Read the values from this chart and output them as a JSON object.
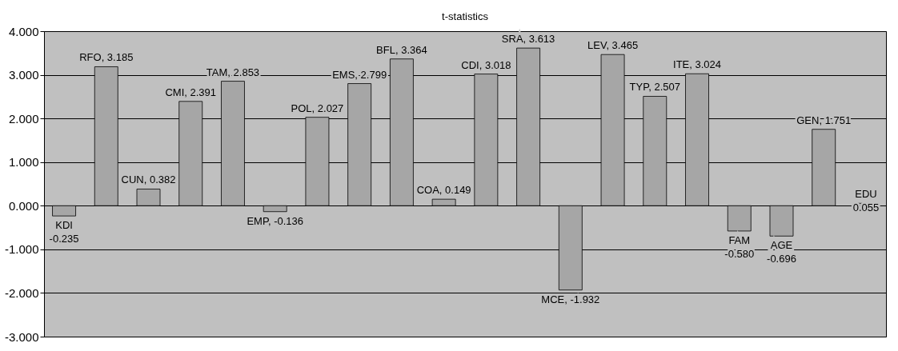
{
  "chart_data": {
    "type": "bar",
    "title": "t-statistics",
    "categories": [
      null,
      null,
      null,
      null,
      null,
      null,
      null,
      null,
      null,
      null,
      null,
      null,
      null,
      null,
      null,
      null,
      null,
      null,
      null,
      null
    ],
    "values": [
      -0.235,
      3.185,
      0.382,
      2.391,
      2.853,
      -0.136,
      2.027,
      2.799,
      3.364,
      0.149,
      3.018,
      3.613,
      -1.932,
      3.465,
      2.507,
      3.024,
      -0.58,
      -0.696,
      1.751,
      0.055
    ],
    "value_labels": [
      "KDI\n-0.235",
      "RFO, 3.185",
      "CUN, 0.382",
      "CMI, 2.391",
      "TAM, 2.853",
      "EMP, -0.136",
      "POL, 2.027",
      "EMS, 2.799",
      "BFL, 3.364",
      "COA, 0.149",
      "CDI, 3.018",
      "SRA, 3.613",
      "MCE, -1.932",
      "LEV, 3.465",
      "TYP, 2.507",
      "ITE, 3.024",
      "FAM\n-0.580",
      "AGE\n-0.696",
      "GEN, 1.751",
      "EDU\n0.055"
    ],
    "color": "#a6a6a6",
    "ylim": [
      -3,
      4
    ],
    "yticks": [
      {
        "value": -3,
        "label": "-3.000"
      },
      {
        "value": -2,
        "label": "-2.000"
      },
      {
        "value": -1,
        "label": "-1.000"
      },
      {
        "value": 0,
        "label": "0.000"
      },
      {
        "value": 1,
        "label": "1.000"
      },
      {
        "value": 2,
        "label": "2.000"
      },
      {
        "value": 3,
        "label": "3.000"
      },
      {
        "value": 4,
        "label": "4.000"
      }
    ],
    "grid": "y"
  }
}
